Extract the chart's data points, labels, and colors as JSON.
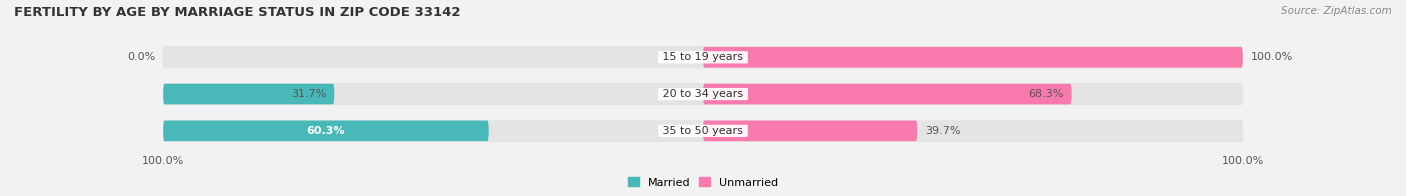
{
  "title": "FERTILITY BY AGE BY MARRIAGE STATUS IN ZIP CODE 33142",
  "source": "Source: ZipAtlas.com",
  "categories": [
    "15 to 19 years",
    "20 to 34 years",
    "35 to 50 years"
  ],
  "married": [
    0.0,
    31.7,
    60.3
  ],
  "unmarried": [
    100.0,
    68.3,
    39.7
  ],
  "married_color": "#49b8b8",
  "unmarried_color": "#f87aad",
  "bg_color": "#f2f2f2",
  "bar_bg_color": "#e4e4e4",
  "title_fontsize": 9.5,
  "source_fontsize": 7.5,
  "label_fontsize": 8.0,
  "cat_fontsize": 8.0,
  "bar_height": 0.58,
  "xlim": 100,
  "x_left_label": "100.0%",
  "x_right_label": "100.0%",
  "married_label_color": "#555555",
  "unmarried_label_color": "#555555",
  "value_inside_color": "#ffffff"
}
